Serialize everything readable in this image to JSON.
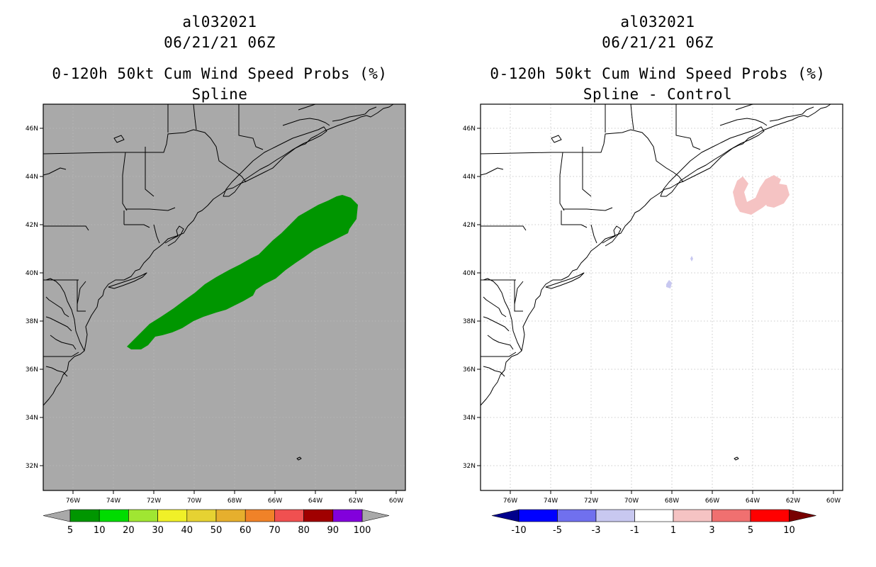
{
  "left_panel": {
    "title_lines": [
      "al032021",
      "06/21/21 06Z",
      "0-120h 50kt Cum Wind Speed Probs (%)",
      "Spline"
    ],
    "map_background": "#a9a9a9",
    "fill_color": "#009600"
  },
  "right_panel": {
    "title_lines": [
      "al032021",
      "06/21/21 06Z",
      "0-120h 50kt Cum Wind Speed Probs (%)",
      "Spline - Control"
    ],
    "map_background": "#ffffff",
    "positive_fill": "#f5c3c3",
    "negative_fill": "#c8c8f0"
  },
  "axes": {
    "lon_labels": [
      "76W",
      "74W",
      "72W",
      "70W",
      "68W",
      "66W",
      "64W",
      "62W",
      "60W"
    ],
    "lat_labels": [
      "46N",
      "44N",
      "42N",
      "40N",
      "38N",
      "36N",
      "34N",
      "32N"
    ]
  },
  "left_colorbar": {
    "labels": [
      "5",
      "10",
      "20",
      "30",
      "40",
      "50",
      "60",
      "70",
      "80",
      "90",
      "100"
    ],
    "colors": [
      "#009600",
      "#00dc00",
      "#a0e632",
      "#f0f028",
      "#e6d232",
      "#e6af2d",
      "#f08228",
      "#f05050",
      "#a00000",
      "#8200dc"
    ],
    "end_color": "#a9a9a9"
  },
  "right_colorbar": {
    "labels": [
      "-10",
      "-5",
      "-3",
      "-1",
      "1",
      "3",
      "5",
      "10"
    ],
    "colors": [
      "#0000ff",
      "#7070ee",
      "#c8c8f0",
      "#ffffff",
      "#f5c3c3",
      "#f07070",
      "#ff0000"
    ],
    "low_end_color": "#00008c",
    "high_end_color": "#780000"
  }
}
